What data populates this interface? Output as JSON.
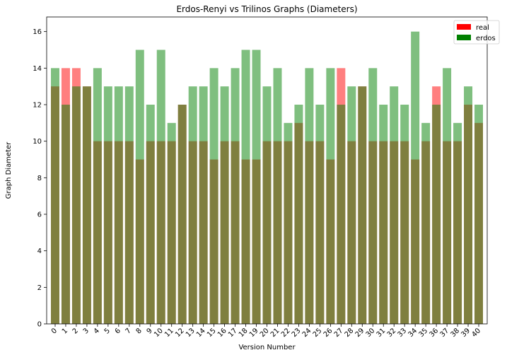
{
  "chart_data": {
    "type": "bar",
    "title": "Erdos-Renyi vs Trilinos Graphs (Diameters)",
    "xlabel": "Version Number",
    "ylabel": "Graph Diameter",
    "ylim": [
      0,
      16.8
    ],
    "yticks": [
      0,
      2,
      4,
      6,
      8,
      10,
      12,
      14,
      16
    ],
    "grid": false,
    "legend_position": "top-right",
    "categories": [
      "0",
      "1",
      "2",
      "3",
      "4",
      "5",
      "6",
      "7",
      "8",
      "9",
      "10",
      "11",
      "12",
      "13",
      "14",
      "15",
      "16",
      "17",
      "18",
      "19",
      "20",
      "21",
      "22",
      "23",
      "24",
      "25",
      "26",
      "27",
      "28",
      "29",
      "30",
      "31",
      "32",
      "33",
      "34",
      "35",
      "36",
      "37",
      "38",
      "39",
      "40"
    ],
    "series": [
      {
        "name": "real",
        "color": "#ff0000",
        "alpha": 0.5,
        "values": [
          13,
          14,
          14,
          13,
          10,
          10,
          10,
          10,
          9,
          10,
          10,
          10,
          12,
          10,
          10,
          9,
          10,
          10,
          9,
          9,
          10,
          10,
          10,
          11,
          10,
          10,
          9,
          14,
          10,
          13,
          10,
          10,
          10,
          10,
          9,
          10,
          13,
          10,
          10,
          12,
          11
        ]
      },
      {
        "name": "erdos",
        "color": "#008000",
        "alpha": 0.5,
        "values": [
          14,
          12,
          13,
          13,
          14,
          13,
          13,
          13,
          15,
          12,
          15,
          11,
          12,
          13,
          13,
          14,
          13,
          14,
          15,
          15,
          13,
          14,
          11,
          12,
          14,
          12,
          14,
          12,
          13,
          13,
          14,
          12,
          13,
          12,
          16,
          11,
          12,
          14,
          11,
          13,
          12
        ]
      }
    ]
  }
}
